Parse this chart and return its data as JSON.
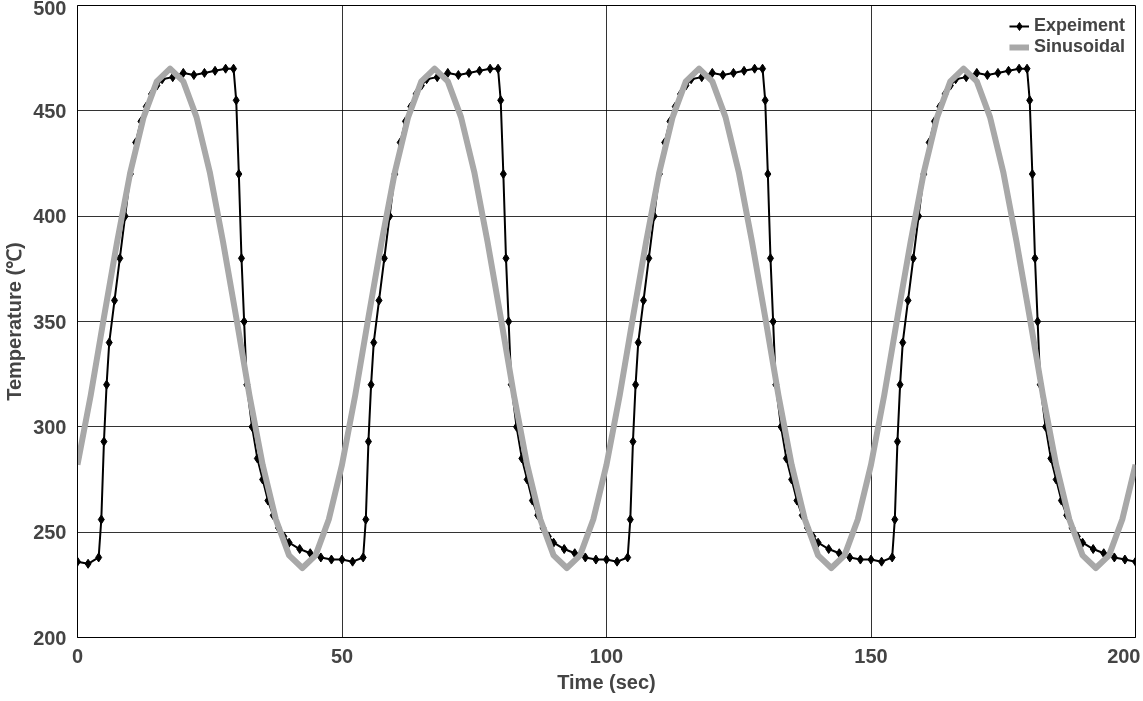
{
  "chart_data": {
    "type": "line",
    "xlabel": "Time (sec)",
    "ylabel": "Temperature (℃)",
    "xlim": [
      0,
      200
    ],
    "ylim": [
      200,
      500
    ],
    "xticks": [
      0,
      50,
      100,
      150,
      200
    ],
    "yticks": [
      200,
      250,
      300,
      350,
      400,
      450,
      500
    ],
    "grid": true,
    "legend": "top right",
    "line_style": "solid",
    "series": [
      {
        "name": "Expeiment",
        "color": "#000000",
        "marker": "diamond",
        "x": [
          0,
          2,
          4,
          4.5,
          5,
          5.5,
          6,
          7,
          8,
          9,
          10,
          11,
          12,
          13,
          14,
          15,
          16,
          18,
          20,
          22,
          24,
          26,
          28,
          29.5,
          30,
          30.5,
          31,
          31.5,
          32,
          33,
          34,
          35,
          36,
          37,
          38,
          39,
          40,
          42,
          44,
          46,
          48,
          50,
          52,
          54,
          54.5,
          55,
          55.5,
          56,
          57,
          58,
          59,
          60,
          61,
          62,
          63,
          64,
          65,
          66,
          68,
          70,
          72,
          74,
          76,
          78,
          79.5,
          80,
          80.5,
          81,
          81.5,
          82,
          83,
          84,
          85,
          86,
          87,
          88,
          89,
          90,
          92,
          94,
          96,
          98,
          100,
          102,
          104,
          104.5,
          105,
          105.5,
          106,
          107,
          108,
          109,
          110,
          111,
          112,
          113,
          114,
          115,
          116,
          118,
          120,
          122,
          124,
          126,
          128,
          129.5,
          130,
          130.5,
          131,
          131.5,
          132,
          133,
          134,
          135,
          136,
          137,
          138,
          139,
          140,
          142,
          144,
          146,
          148,
          150,
          152,
          154,
          154.5,
          155,
          155.5,
          156,
          157,
          158,
          159,
          160,
          161,
          162,
          163,
          164,
          165,
          166,
          168,
          170,
          172,
          174,
          176,
          178,
          179.5,
          180,
          180.5,
          181,
          181.5,
          182,
          183,
          184,
          185,
          186,
          187,
          188,
          189,
          190,
          192,
          194,
          196,
          198,
          200
        ],
        "values": [
          236,
          235,
          238,
          256,
          293,
          320,
          340,
          360,
          380,
          400,
          420,
          435,
          445,
          452,
          458,
          462,
          465,
          466,
          468,
          467,
          468,
          469,
          470,
          470,
          455,
          420,
          380,
          350,
          320,
          300,
          285,
          275,
          265,
          258,
          252,
          248,
          245,
          242,
          240,
          238,
          237,
          237,
          236,
          238,
          256,
          293,
          320,
          340,
          360,
          380,
          400,
          420,
          435,
          445,
          452,
          458,
          462,
          465,
          466,
          468,
          467,
          468,
          469,
          470,
          470,
          455,
          420,
          380,
          350,
          320,
          300,
          285,
          275,
          265,
          258,
          252,
          248,
          245,
          242,
          240,
          238,
          237,
          237,
          236,
          238,
          256,
          293,
          320,
          340,
          360,
          380,
          400,
          420,
          435,
          445,
          452,
          458,
          462,
          465,
          466,
          468,
          467,
          468,
          469,
          470,
          470,
          455,
          420,
          380,
          350,
          320,
          300,
          285,
          275,
          265,
          258,
          252,
          248,
          245,
          242,
          240,
          238,
          237,
          237,
          236,
          238,
          256,
          293,
          320,
          340,
          360,
          380,
          400,
          420,
          435,
          445,
          452,
          458,
          462,
          465,
          466,
          468,
          467,
          468,
          469,
          470,
          470,
          455,
          420,
          380,
          350,
          320,
          300,
          285,
          275,
          265,
          258,
          252,
          248,
          245,
          242,
          240,
          238,
          237,
          236
        ]
      },
      {
        "name": "Sinusoidal",
        "color": "#a8a8a8",
        "marker": "none",
        "x": [
          0,
          2.5,
          5,
          7.5,
          10,
          12.5,
          15,
          17.5,
          20,
          22.5,
          25,
          27.5,
          30,
          32.5,
          35,
          37.5,
          40,
          42.5,
          45,
          47.5,
          50,
          52.5,
          55,
          57.5,
          60,
          62.5,
          65,
          67.5,
          70,
          72.5,
          75,
          77.5,
          80,
          82.5,
          85,
          87.5,
          90,
          92.5,
          95,
          97.5,
          100,
          102.5,
          105,
          107.5,
          110,
          112.5,
          115,
          117.5,
          120,
          122.5,
          125,
          127.5,
          130,
          132.5,
          135,
          137.5,
          140,
          142.5,
          145,
          147.5,
          150,
          152.5,
          155,
          157.5,
          160,
          162.5,
          165,
          167.5,
          170,
          172.5,
          175,
          177.5,
          180,
          182.5,
          185,
          187.5,
          190,
          192.5,
          195,
          197.5,
          200
        ],
        "values": [
          282,
          315,
          352,
          388,
          421,
          447,
          464,
          470,
          464,
          447,
          421,
          388,
          352,
          315,
          282,
          256,
          239,
          233,
          239,
          256,
          282,
          315,
          352,
          388,
          421,
          447,
          464,
          470,
          464,
          447,
          421,
          388,
          352,
          315,
          282,
          256,
          239,
          233,
          239,
          256,
          282,
          315,
          352,
          388,
          421,
          447,
          464,
          470,
          464,
          447,
          421,
          388,
          352,
          315,
          282,
          256,
          239,
          233,
          239,
          256,
          282,
          315,
          352,
          388,
          421,
          447,
          464,
          470,
          464,
          447,
          421,
          388,
          352,
          315,
          282,
          256,
          239,
          233,
          239,
          256,
          282
        ]
      }
    ]
  }
}
